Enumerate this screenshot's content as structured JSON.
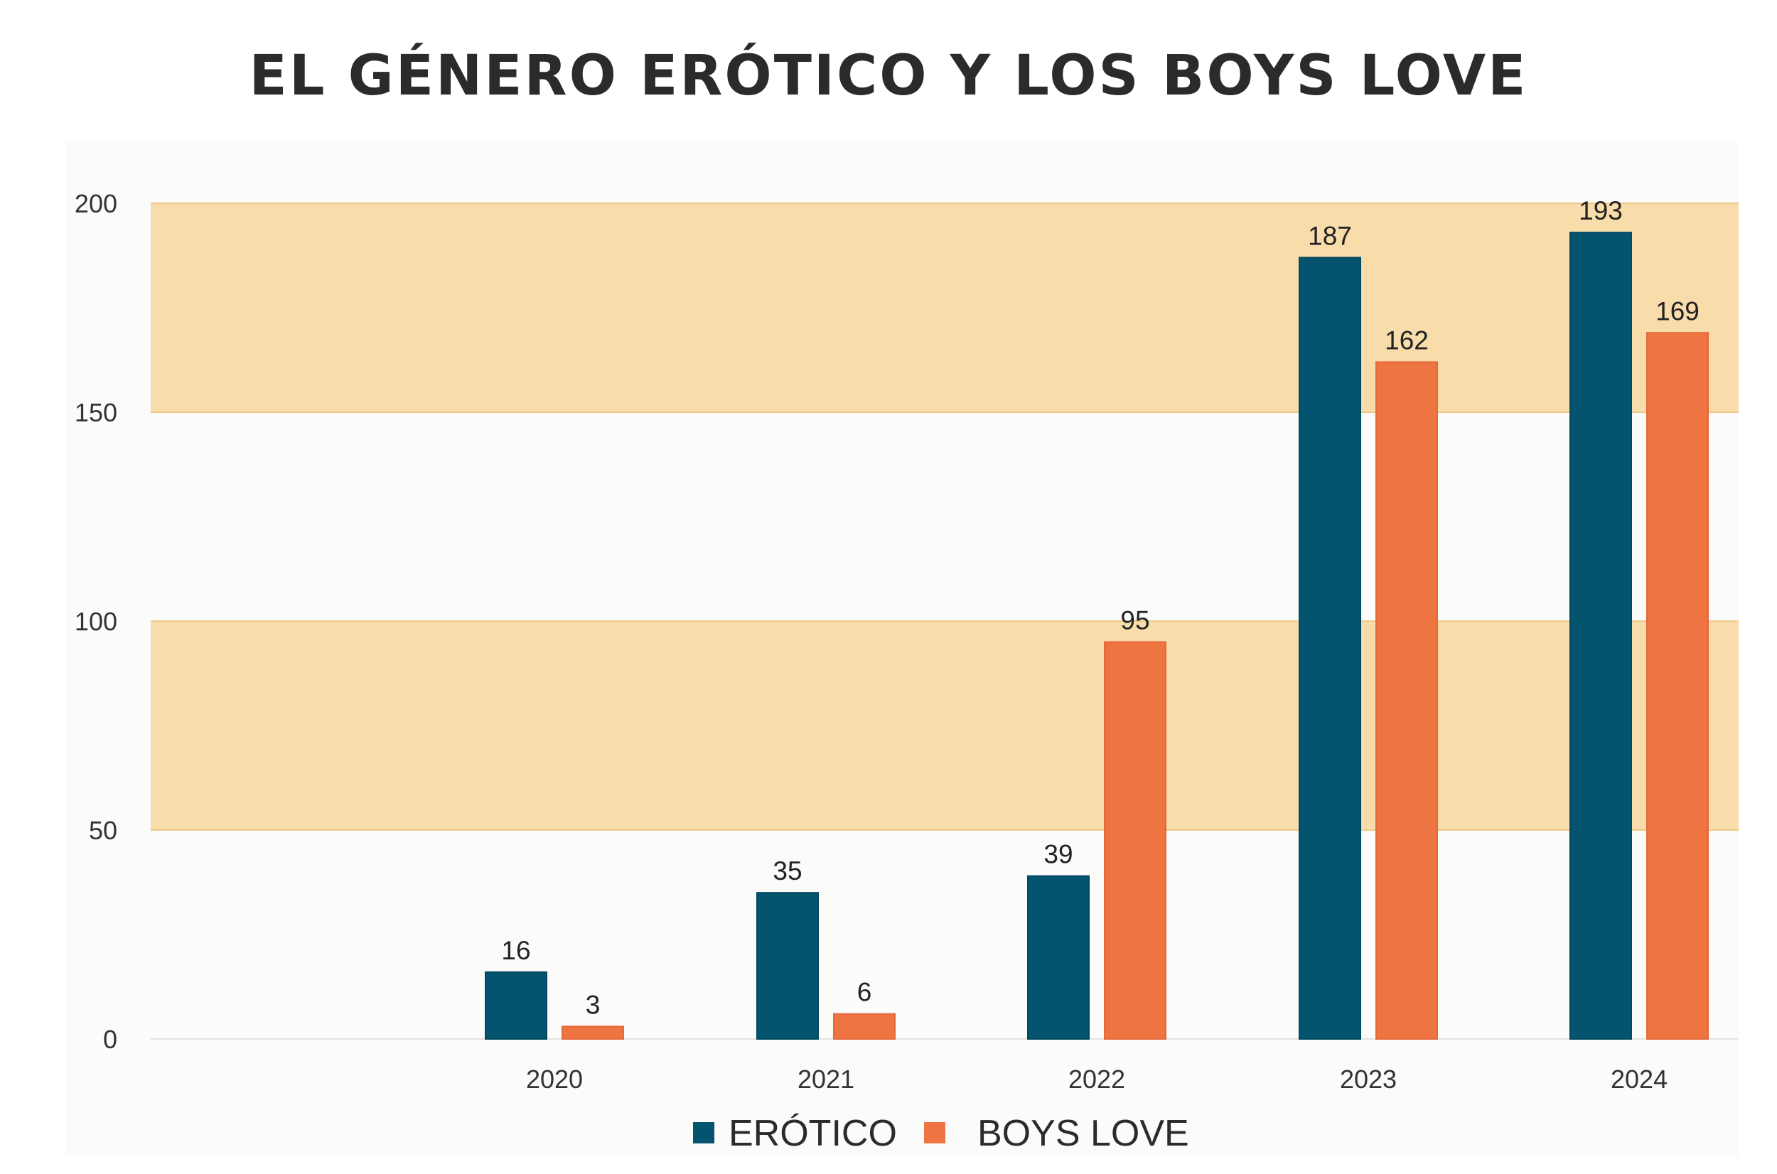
{
  "title": "EL GÉNERO ERÓTICO Y LOS BOYS LOVE",
  "colors": {
    "band": "#f8dcaa",
    "plot_bg": "#fbfbfa",
    "erotico": "#04536f",
    "boys_love": "#ee7441"
  },
  "chart_data": {
    "type": "bar",
    "categories": [
      "2020",
      "2021",
      "2022",
      "2023",
      "2024"
    ],
    "series": [
      {
        "name": "ERÓTICO",
        "values": [
          16,
          35,
          39,
          187,
          193
        ]
      },
      {
        "name": "BOYS LOVE",
        "values": [
          3,
          6,
          95,
          162,
          169
        ]
      }
    ],
    "ylim": [
      0,
      200
    ],
    "yticks": [
      0,
      50,
      100,
      150,
      200
    ],
    "xlabel": "",
    "ylabel": "",
    "data_labels": true,
    "legend": "bottom",
    "grid": "alternating horizontal bands"
  }
}
